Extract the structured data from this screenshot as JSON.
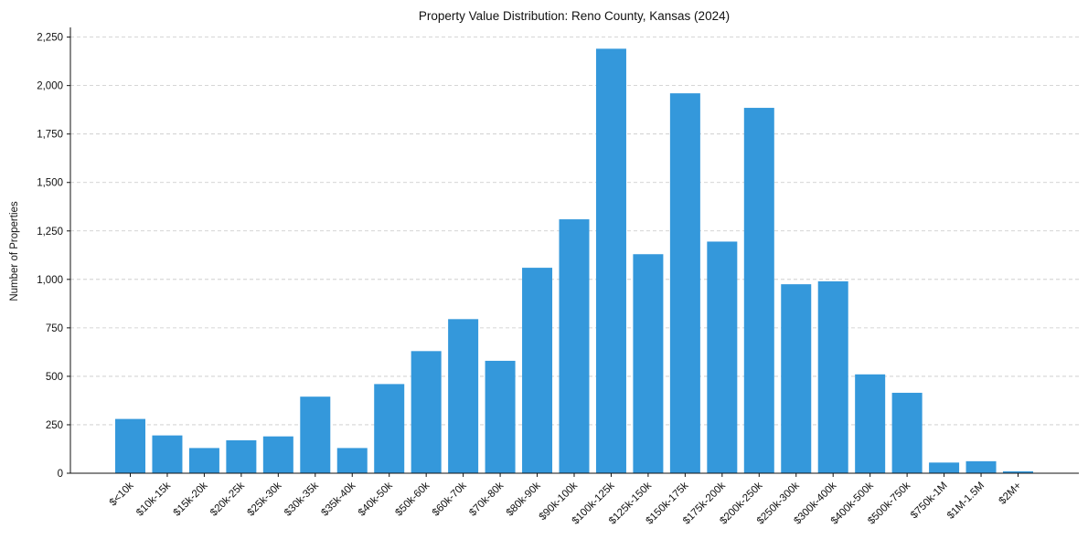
{
  "chart_data": {
    "type": "bar",
    "title": "Property Value Distribution: Reno County, Kansas (2024)",
    "xlabel": "",
    "ylabel": "Number of Properties",
    "ylim": [
      0,
      2300
    ],
    "yticks": [
      0,
      250,
      500,
      750,
      1000,
      1250,
      1500,
      1750,
      2000,
      2250
    ],
    "ytick_labels": [
      "0",
      "250",
      "500",
      "750",
      "1,000",
      "1,250",
      "1,500",
      "1,750",
      "2,000",
      "2,250"
    ],
    "grid": "horizontal dashed",
    "bar_color": "#3498db",
    "categories": [
      "$<10k",
      "$10k-15k",
      "$15k-20k",
      "$20k-25k",
      "$25k-30k",
      "$30k-35k",
      "$35k-40k",
      "$40k-50k",
      "$50k-60k",
      "$60k-70k",
      "$70k-80k",
      "$80k-90k",
      "$90k-100k",
      "$100k-125k",
      "$125k-150k",
      "$150k-175k",
      "$175k-200k",
      "$200k-250k",
      "$250k-300k",
      "$300k-400k",
      "$400k-500k",
      "$500k-750k",
      "$750k-1M",
      "$1M-1.5M",
      "$2M+"
    ],
    "values": [
      280,
      195,
      130,
      170,
      190,
      395,
      130,
      460,
      630,
      795,
      580,
      1060,
      1310,
      2190,
      1130,
      1960,
      1195,
      1885,
      975,
      990,
      510,
      415,
      55,
      62,
      10
    ]
  }
}
